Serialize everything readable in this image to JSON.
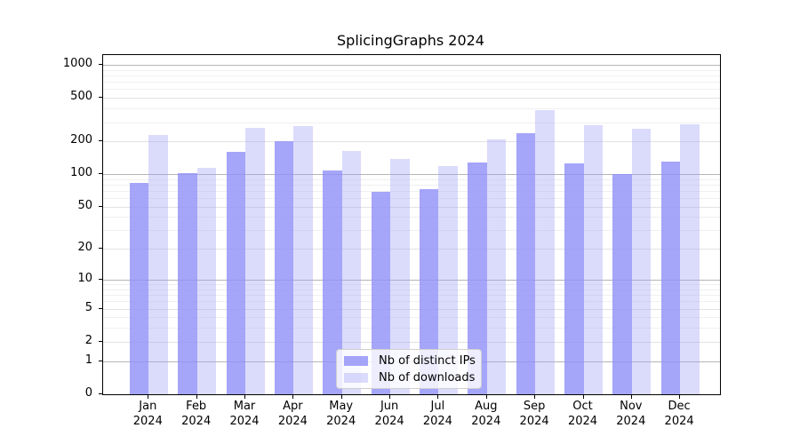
{
  "title": "SplicingGraphs 2024",
  "chart_data": {
    "type": "bar",
    "title": "SplicingGraphs 2024",
    "categories": [
      "Jan 2024",
      "Feb 2024",
      "Mar 2024",
      "Apr 2024",
      "May 2024",
      "Jun 2024",
      "Jul 2024",
      "Aug 2024",
      "Sep 2024",
      "Oct 2024",
      "Nov 2024",
      "Dec 2024"
    ],
    "series": [
      {
        "name": "Nb of distinct IPs",
        "values": [
          84,
          102,
          160,
          201,
          108,
          69,
          73,
          129,
          238,
          127,
          101,
          130
        ]
      },
      {
        "name": "Nb of downloads",
        "values": [
          229,
          115,
          268,
          278,
          165,
          139,
          119,
          210,
          390,
          285,
          264,
          287
        ]
      }
    ],
    "xlabel": "",
    "ylabel": "",
    "y_axis": {
      "scale": "log1p",
      "ticks": [
        0,
        1,
        2,
        5,
        10,
        20,
        50,
        100,
        200,
        500,
        1000
      ],
      "decade_ticks": [
        1,
        10,
        100,
        1000
      ],
      "minor_gridlines": [
        3,
        4,
        6,
        7,
        8,
        9,
        30,
        40,
        60,
        70,
        80,
        90,
        300,
        400,
        600,
        700,
        800,
        900
      ],
      "ylim": [
        0,
        1000
      ]
    },
    "grid": true,
    "legend_position": "inside-bottom-center"
  },
  "legend": {
    "items": [
      {
        "label": "Nb of distinct IPs",
        "swatch": "ips-swatch"
      },
      {
        "label": "Nb of downloads",
        "swatch": "downloads-swatch"
      }
    ]
  },
  "colors": {
    "bar_distinct_ips": "rgba(145,145,248,0.82)",
    "bar_downloads": "rgba(160,160,248,0.38)",
    "bar_distinct_ips_flat": "#a5a5fa",
    "bar_downloads_flat": "#dbdbfc",
    "gridline_major": "#b5b5b5",
    "gridline_labeled": "#e2e2e2",
    "gridline_minor": "#f0f0f0",
    "axis": "#000000",
    "background": "#ffffff"
  }
}
